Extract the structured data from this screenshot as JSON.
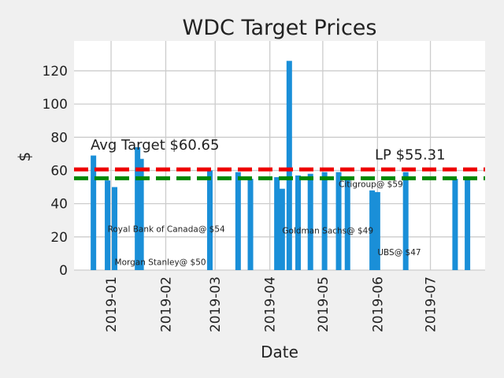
{
  "chart_data": {
    "type": "bar",
    "title": "WDC Target Prices",
    "xlabel": "Date",
    "ylabel": "$",
    "ylim": [
      0,
      138
    ],
    "xlim": [
      "2018-12-11",
      "2019-08-01"
    ],
    "y_ticks": [
      0,
      20,
      40,
      60,
      80,
      100,
      120
    ],
    "x_ticks": [
      "2019-01-01",
      "2019-02-01",
      "2019-03-01",
      "2019-04-01",
      "2019-05-01",
      "2019-06-01",
      "2019-07-01"
    ],
    "x_tick_labels": [
      "2019-01",
      "2019-02",
      "2019-03",
      "2019-04",
      "2019-05",
      "2019-06",
      "2019-07"
    ],
    "grid": true,
    "colors": {
      "bars": "#1a8fd8",
      "avg_line": "#ee0000",
      "lp_line": "#008800",
      "background": "#f0f0f0",
      "plot_background": "#ffffff",
      "grid": "#cccccc"
    },
    "bars": [
      {
        "date": "2018-12-22",
        "value": 69
      },
      {
        "date": "2018-12-30",
        "value": 54
      },
      {
        "date": "2019-01-03",
        "value": 50
      },
      {
        "date": "2019-01-16",
        "value": 74
      },
      {
        "date": "2019-01-18",
        "value": 67
      },
      {
        "date": "2019-02-26",
        "value": 60
      },
      {
        "date": "2019-03-14",
        "value": 59
      },
      {
        "date": "2019-03-21",
        "value": 55
      },
      {
        "date": "2019-04-05",
        "value": 56
      },
      {
        "date": "2019-04-08",
        "value": 49
      },
      {
        "date": "2019-04-12",
        "value": 126
      },
      {
        "date": "2019-04-17",
        "value": 57
      },
      {
        "date": "2019-04-24",
        "value": 58
      },
      {
        "date": "2019-05-02",
        "value": 59
      },
      {
        "date": "2019-05-10",
        "value": 59
      },
      {
        "date": "2019-05-15",
        "value": 56
      },
      {
        "date": "2019-05-29",
        "value": 48
      },
      {
        "date": "2019-06-01",
        "value": 47
      },
      {
        "date": "2019-06-17",
        "value": 59
      },
      {
        "date": "2019-07-15",
        "value": 55
      },
      {
        "date": "2019-07-22",
        "value": 55
      }
    ],
    "reference_lines": [
      {
        "value": 60.65,
        "label": "Avg Target $60.65",
        "color": "#ee0000",
        "style": "dashed"
      },
      {
        "value": 55.31,
        "label": "LP $55.31",
        "color": "#008800",
        "style": "dashed"
      }
    ],
    "annotations": [
      {
        "text": "Royal Bank of Canada@ $54",
        "date": "2018-12-30",
        "y": 23
      },
      {
        "text": "Morgan Stanley@ $50",
        "date": "2019-01-03",
        "y": 3
      },
      {
        "text": "Goldman Sachs@ $49",
        "date": "2019-04-08",
        "y": 22
      },
      {
        "text": "Citigroup@ $59",
        "date": "2019-05-10",
        "y": 50
      },
      {
        "text": "UBS@ $47",
        "date": "2019-06-01",
        "y": 9
      }
    ]
  }
}
